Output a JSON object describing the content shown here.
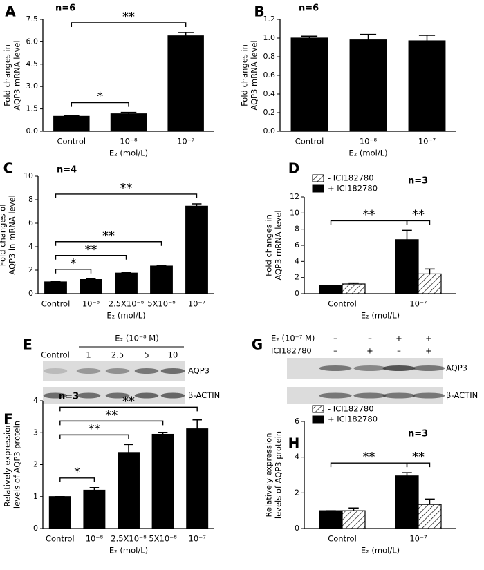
{
  "chart_data": [
    {
      "type": "bar",
      "panel": "A",
      "note": "n=6",
      "ylabel": [
        "Fold changes in",
        "AQP3 mRNA level"
      ],
      "xlabel": "E₂ (mol/L)",
      "categories": [
        "Control",
        "10⁻⁸",
        "10⁻⁷"
      ],
      "series": [
        {
          "color": "#000000",
          "values": [
            1.0,
            1.17,
            6.4
          ],
          "errors": [
            0.04,
            0.1,
            0.22
          ]
        }
      ],
      "ylim": [
        0,
        7.5
      ],
      "yticks": [
        {
          "value": 0,
          "label": "0.0"
        },
        1.5,
        {
          "value": 3,
          "label": "3.0"
        },
        4.5,
        {
          "value": 6,
          "label": "6.0"
        },
        7.5
      ],
      "annotations": [
        {
          "label": "*",
          "between": [
            [
              0,
              0
            ],
            [
              1,
              0
            ]
          ]
        },
        {
          "label": "**",
          "between": [
            [
              0,
              0
            ],
            [
              2,
              0
            ]
          ]
        }
      ]
    },
    {
      "type": "bar",
      "panel": "B",
      "note": "n=6",
      "ylabel": [
        "Fold changes in",
        "AQP3 mRNA level"
      ],
      "xlabel": "E₂ (mol/L)",
      "categories": [
        "Control",
        "10⁻⁸",
        "10⁻⁷"
      ],
      "series": [
        {
          "color": "#000000",
          "values": [
            1.0,
            0.98,
            0.97
          ],
          "errors": [
            0.02,
            0.06,
            0.06
          ]
        }
      ],
      "ylim": [
        0,
        1.2
      ],
      "yticks": [
        {
          "value": 0,
          "label": "0.0"
        },
        0.2,
        0.4,
        0.6,
        0.8,
        {
          "value": 1,
          "label": "1.0"
        },
        1.2
      ],
      "annotations": []
    },
    {
      "type": "bar",
      "panel": "C",
      "note": "n=4",
      "ylabel": [
        "Fold changes of",
        "AQP3 in mRNA level"
      ],
      "xlabel": "E₂ (mol/L)",
      "categories": [
        "Control",
        "10⁻⁸",
        "2.5X10⁻⁸",
        "5X10⁻⁸",
        "10⁻⁷"
      ],
      "series": [
        {
          "color": "#000000",
          "values": [
            1.0,
            1.2,
            1.75,
            2.35,
            7.45
          ],
          "errors": [
            0.03,
            0.05,
            0.06,
            0.06,
            0.2
          ]
        }
      ],
      "ylim": [
        0,
        10
      ],
      "yticks": [
        0,
        2,
        4,
        6,
        8,
        10
      ],
      "annotations": [
        {
          "label": "*",
          "between": [
            [
              0,
              0
            ],
            [
              1,
              0
            ]
          ]
        },
        {
          "label": "**",
          "between": [
            [
              0,
              0
            ],
            [
              2,
              0
            ]
          ]
        },
        {
          "label": "**",
          "between": [
            [
              0,
              0
            ],
            [
              3,
              0
            ]
          ]
        },
        {
          "label": "**",
          "between": [
            [
              0,
              0
            ],
            [
              4,
              0
            ]
          ]
        }
      ]
    },
    {
      "type": "bar",
      "panel": "D",
      "note": "n=3",
      "ylabel": [
        "Fold changes in",
        "AQP3 mRNA level"
      ],
      "xlabel": "E₂ (mol/L)",
      "categories": [
        "Control",
        "10⁻⁷"
      ],
      "legend": "upper left",
      "series": [
        {
          "name": "+ ICI182780",
          "color": "#000000",
          "values": [
            1.0,
            6.7
          ],
          "errors": [
            0.05,
            1.15
          ]
        },
        {
          "name": "- ICI182780",
          "color": "#ffffff",
          "hatch": true,
          "values": [
            1.2,
            2.45
          ],
          "errors": [
            0.12,
            0.6
          ]
        }
      ],
      "ylim": [
        0,
        12
      ],
      "yticks": [
        0,
        2,
        4,
        6,
        8,
        10,
        12
      ],
      "annotations": [
        {
          "label": "**",
          "between": [
            [
              0,
              0
            ],
            [
              1,
              0
            ]
          ]
        },
        {
          "label": "**",
          "between": [
            [
              1,
              0
            ],
            [
              1,
              1
            ]
          ]
        }
      ]
    },
    {
      "type": "blot",
      "panel": "E",
      "header": "E₂ (10⁻⁸ M)",
      "lanes": [
        "Control",
        "1",
        "2.5",
        "5",
        "10"
      ],
      "rows": [
        "AQP3",
        "β-ACTIN"
      ]
    },
    {
      "type": "blot",
      "panel": "G",
      "conditions": [
        {
          "name": "E₂ (10⁻⁷ M)",
          "signs": [
            "–",
            "–",
            "+",
            "+"
          ]
        },
        {
          "name": "ICI182780",
          "signs": [
            "–",
            "+",
            "–",
            "+"
          ]
        }
      ],
      "rows": [
        "AQP3",
        "β-ACTIN"
      ]
    },
    {
      "type": "bar",
      "panel": "F",
      "note": "n=3",
      "ylabel": [
        "Relatively expression",
        "levels of AQP3 protein"
      ],
      "xlabel": "E₂ (mol/L)",
      "categories": [
        "Control",
        "10⁻⁸",
        "2.5X10⁻⁸",
        "5X10⁻⁸",
        "10⁻⁷"
      ],
      "series": [
        {
          "color": "#000000",
          "values": [
            1.0,
            1.2,
            2.38,
            2.95,
            3.12
          ],
          "errors": [
            0,
            0.08,
            0.25,
            0.06,
            0.28
          ]
        }
      ],
      "ylim": [
        0,
        4
      ],
      "yticks": [
        0,
        1,
        2,
        3,
        4
      ],
      "annotations": [
        {
          "label": "*",
          "between": [
            [
              0,
              0
            ],
            [
              1,
              0
            ]
          ]
        },
        {
          "label": "**",
          "between": [
            [
              0,
              0
            ],
            [
              2,
              0
            ]
          ]
        },
        {
          "label": "**",
          "between": [
            [
              0,
              0
            ],
            [
              3,
              0
            ]
          ]
        },
        {
          "label": "**",
          "between": [
            [
              0,
              0
            ],
            [
              4,
              0
            ]
          ]
        }
      ]
    },
    {
      "type": "bar",
      "panel": "H",
      "note": "n=3",
      "ylabel": [
        "Relatively expression",
        "levels of AQP3 protein"
      ],
      "xlabel": "E₂ (mol/L)",
      "categories": [
        "Control",
        "10⁻⁷"
      ],
      "legend": "upper left",
      "series": [
        {
          "name": "+ ICI182780",
          "color": "#000000",
          "values": [
            1.0,
            2.95
          ],
          "errors": [
            0,
            0.18
          ]
        },
        {
          "name": "- ICI182780",
          "color": "#ffffff",
          "hatch": true,
          "values": [
            1.0,
            1.35
          ],
          "errors": [
            0.15,
            0.3
          ]
        }
      ],
      "ylim": [
        0,
        6
      ],
      "yticks": [
        0,
        2,
        4,
        6
      ],
      "annotations": [
        {
          "label": "**",
          "between": [
            [
              0,
              0
            ],
            [
              1,
              0
            ]
          ]
        },
        {
          "label": "**",
          "between": [
            [
              1,
              0
            ],
            [
              1,
              1
            ]
          ]
        }
      ]
    }
  ]
}
